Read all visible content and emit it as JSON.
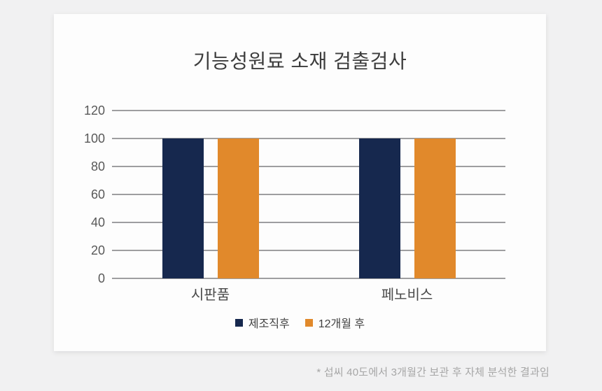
{
  "chart_data": {
    "type": "bar",
    "title": "기능성원료 소재 검출검사",
    "categories": [
      "시판품",
      "페노비스"
    ],
    "series": [
      {
        "name": "제조직후",
        "color": "#16284e",
        "values": [
          100,
          100
        ]
      },
      {
        "name": "12개월 후",
        "color": "#e1892b",
        "values": [
          100,
          100
        ]
      }
    ],
    "ylim": [
      0,
      120
    ],
    "yticks": [
      0,
      20,
      40,
      60,
      80,
      100,
      120
    ],
    "grid": true,
    "legend_position": "bottom",
    "xlabel": "",
    "ylabel": ""
  },
  "footnote": "* 섭씨 40도에서 3개월간 보관 후 자체 분석한 결과임"
}
